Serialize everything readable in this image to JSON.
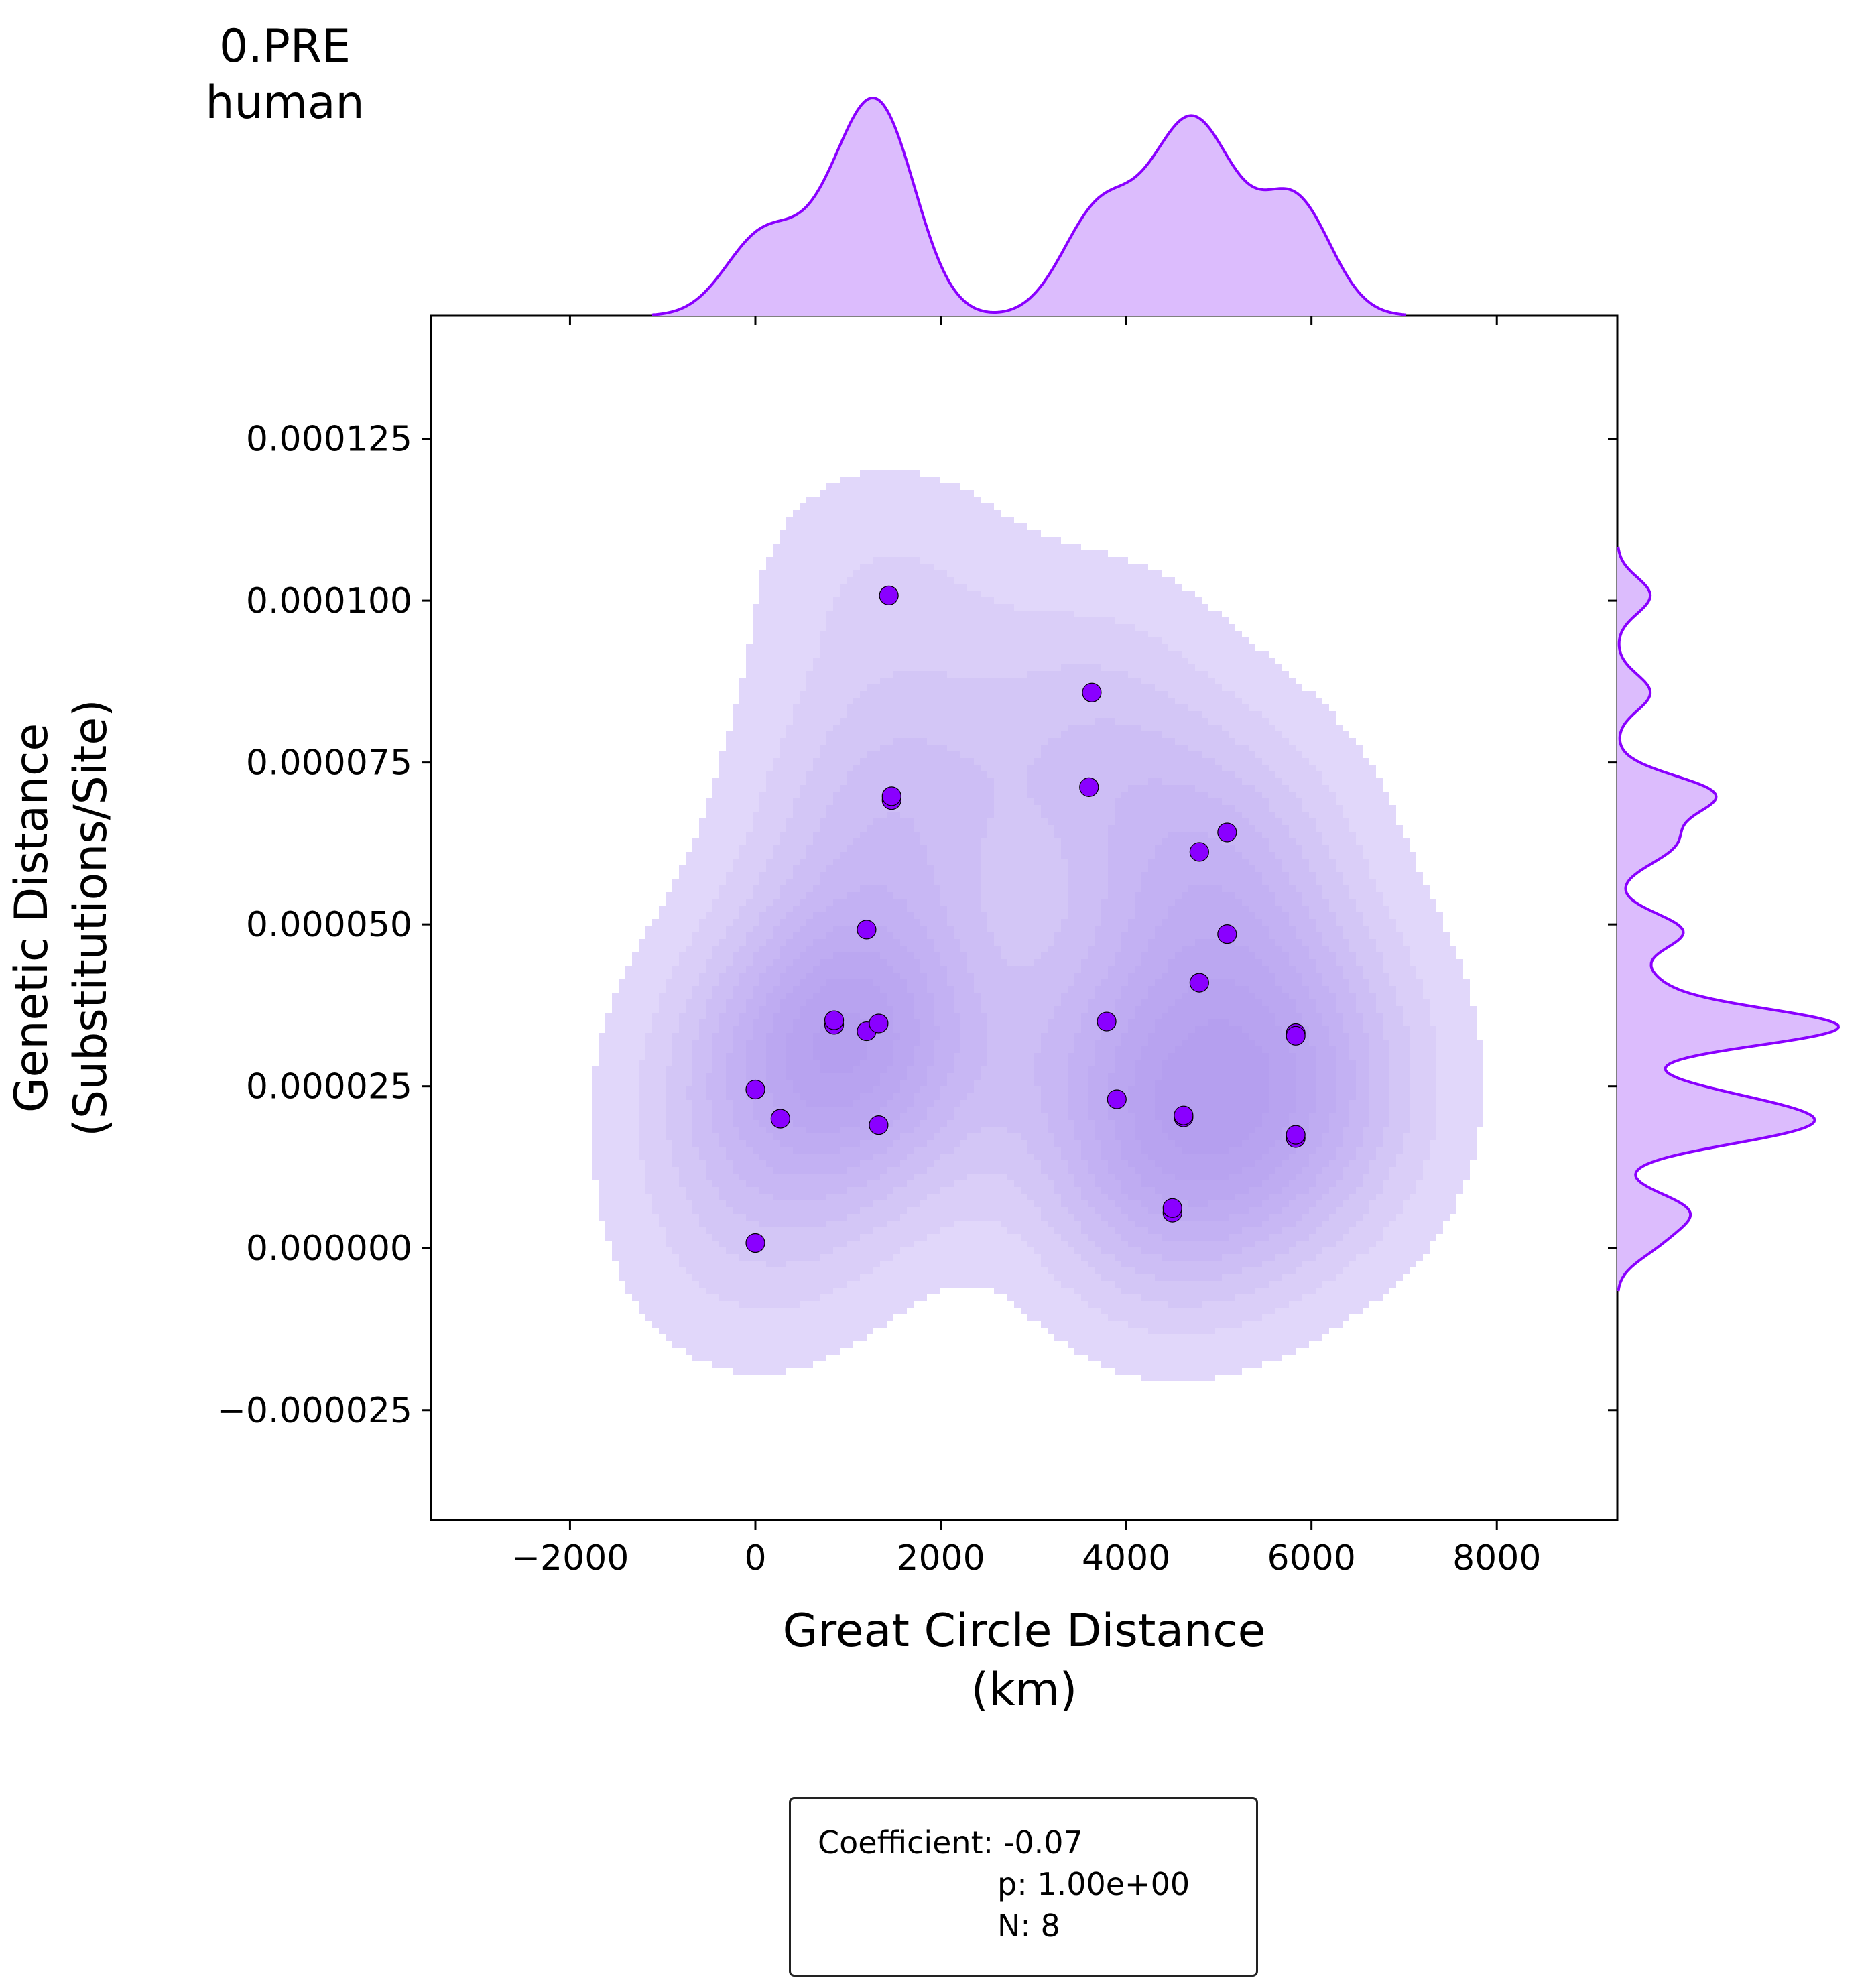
{
  "title_lines": [
    "0.PRE",
    "human"
  ],
  "stats": {
    "coefficient": "Coefficient: -0.07",
    "p": "p: 1.00e+00",
    "n": "N: 8"
  },
  "colors": {
    "accent": "#8a00ff",
    "marginal_fill": "#dcbcfd",
    "kde_fill": "#9b7cf0",
    "point_edge": "#000000"
  },
  "chart_data": {
    "type": "scatter",
    "subtype": "jointplot-with-kde",
    "xlabel": "Great Circle Distance\n(km)",
    "ylabel": "Genetic Distance\n(Substitutions/Site)",
    "xlim": [
      -3500,
      9300
    ],
    "ylim": [
      -4.2e-05,
      0.000144
    ],
    "x_ticks": [
      -2000,
      0,
      2000,
      4000,
      6000,
      8000
    ],
    "x_tick_labels": [
      "−2000",
      "0",
      "2000",
      "4000",
      "6000",
      "8000"
    ],
    "y_ticks": [
      -2.5e-05,
      0,
      2.5e-05,
      5e-05,
      7.5e-05,
      0.0001,
      0.000125
    ],
    "y_tick_labels": [
      "−0.000025",
      "0.000000",
      "0.000025",
      "0.000050",
      "0.000075",
      "0.000100",
      "0.000125"
    ],
    "grid": false,
    "points": [
      {
        "x": 0,
        "y": 8e-07
      },
      {
        "x": 0,
        "y": 2.45e-05
      },
      {
        "x": 270,
        "y": 2e-05
      },
      {
        "x": 850,
        "y": 3.45e-05
      },
      {
        "x": 850,
        "y": 3.52e-05
      },
      {
        "x": 1200,
        "y": 3.35e-05
      },
      {
        "x": 1200,
        "y": 4.92e-05
      },
      {
        "x": 1330,
        "y": 1.9e-05
      },
      {
        "x": 1330,
        "y": 3.47e-05
      },
      {
        "x": 1440,
        "y": 0.0001008
      },
      {
        "x": 1470,
        "y": 6.92e-05
      },
      {
        "x": 1470,
        "y": 6.98e-05
      },
      {
        "x": 3600,
        "y": 7.12e-05
      },
      {
        "x": 3630,
        "y": 8.58e-05
      },
      {
        "x": 3790,
        "y": 3.5e-05
      },
      {
        "x": 3900,
        "y": 2.3e-05
      },
      {
        "x": 4500,
        "y": 5.5e-06
      },
      {
        "x": 4500,
        "y": 6.2e-06
      },
      {
        "x": 4620,
        "y": 2.02e-05
      },
      {
        "x": 4620,
        "y": 2.05e-05
      },
      {
        "x": 4790,
        "y": 6.12e-05
      },
      {
        "x": 4790,
        "y": 4.1e-05
      },
      {
        "x": 5090,
        "y": 6.42e-05
      },
      {
        "x": 5090,
        "y": 4.85e-05
      },
      {
        "x": 5830,
        "y": 3.32e-05
      },
      {
        "x": 5830,
        "y": 3.28e-05
      },
      {
        "x": 5830,
        "y": 1.7e-05
      },
      {
        "x": 5830,
        "y": 1.75e-05
      }
    ]
  }
}
